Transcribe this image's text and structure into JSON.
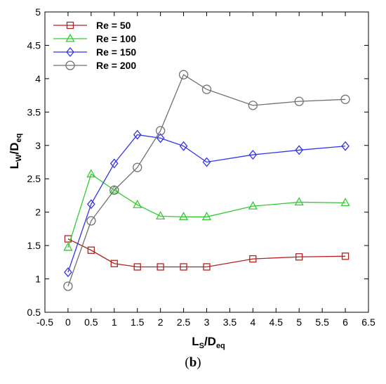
{
  "panel_label_open": "(",
  "panel_label_letter": "b",
  "panel_label_close": ")",
  "chart_data": {
    "type": "line",
    "xlabel_main": "L",
    "xlabel_sub": "S",
    "xlabel_sep": "/D",
    "xlabel_sub2": "eq",
    "ylabel_main": "L",
    "ylabel_sub": "W",
    "ylabel_sep": "/D",
    "ylabel_sub2": "eq",
    "xlim": [
      -0.5,
      6.5
    ],
    "ylim": [
      0.5,
      5
    ],
    "xticks": [
      -0.5,
      0,
      0.5,
      1,
      1.5,
      2,
      2.5,
      3,
      3.5,
      4,
      4.5,
      5,
      5.5,
      6,
      6.5
    ],
    "yticks": [
      0.5,
      1,
      1.5,
      2,
      2.5,
      3,
      3.5,
      4,
      4.5,
      5
    ],
    "x": [
      0,
      0.5,
      1,
      1.5,
      2,
      2.5,
      3,
      4,
      5,
      6
    ],
    "legend_position": "top-left",
    "grid": false,
    "series": [
      {
        "name": "Re = 50",
        "color": "#b22222",
        "marker": "square",
        "values": [
          1.6,
          1.43,
          1.23,
          1.18,
          1.18,
          1.18,
          1.18,
          1.3,
          1.33,
          1.34
        ]
      },
      {
        "name": "Re = 100",
        "color": "#33cc33",
        "marker": "triangle",
        "values": [
          1.47,
          2.57,
          2.33,
          2.11,
          1.94,
          1.93,
          1.93,
          2.09,
          2.15,
          2.14
        ]
      },
      {
        "name": "Re = 150",
        "color": "#3333ee",
        "marker": "diamond",
        "values": [
          1.1,
          2.12,
          2.73,
          3.16,
          3.11,
          2.99,
          2.75,
          2.86,
          2.93,
          2.99
        ]
      },
      {
        "name": "Re = 200",
        "color": "#707070",
        "marker": "circle",
        "values": [
          0.89,
          1.87,
          2.33,
          2.67,
          3.22,
          4.06,
          3.84,
          3.6,
          3.66,
          3.69
        ]
      }
    ]
  }
}
